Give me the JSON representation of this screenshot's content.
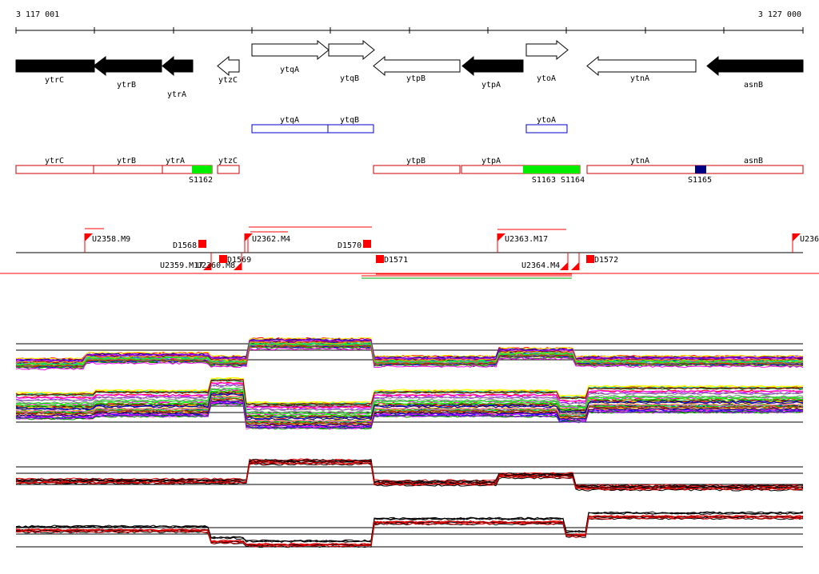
{
  "coords": {
    "start": "3 117 001",
    "end": "3 127 000"
  },
  "genes": [
    {
      "name": "ytrC",
      "strand": "-",
      "filled": true
    },
    {
      "name": "ytrB",
      "strand": "-",
      "filled": true
    },
    {
      "name": "ytrA",
      "strand": "-",
      "filled": true
    },
    {
      "name": "ytzC",
      "strand": "-",
      "filled": false
    },
    {
      "name": "ytqA",
      "strand": "+",
      "filled": false
    },
    {
      "name": "ytqB",
      "strand": "+",
      "filled": false
    },
    {
      "name": "ytpB",
      "strand": "-",
      "filled": false
    },
    {
      "name": "ytpA",
      "strand": "-",
      "filled": true
    },
    {
      "name": "ytoA",
      "strand": "+",
      "filled": false
    },
    {
      "name": "ytnA",
      "strand": "-",
      "filled": false
    },
    {
      "name": "asnB",
      "strand": "-",
      "filled": true
    }
  ],
  "plus_track": [
    "ytqA",
    "ytqB",
    "ytoA"
  ],
  "minus_track": [
    "ytrC",
    "ytrB",
    "ytrA",
    "ytzC",
    "ytpB",
    "ytpA",
    "ytnA",
    "asnB"
  ],
  "sites": [
    {
      "name": "S1162",
      "color": "#00ee00"
    },
    {
      "name": "S1163 S1164",
      "color": "#00ee00"
    },
    {
      "name": "S1165",
      "color": "#000080"
    }
  ],
  "features_up": [
    {
      "name": "U2358.M9"
    },
    {
      "name": "U2362.M4"
    },
    {
      "name": "U2363.M17"
    },
    {
      "name": "U236"
    }
  ],
  "features_down": [
    {
      "name": "U2359.M17"
    },
    {
      "name": "U2360.M8"
    },
    {
      "name": "U2364.M4"
    }
  ],
  "markers": [
    {
      "name": "D1568"
    },
    {
      "name": "D1569"
    },
    {
      "name": "D1570"
    },
    {
      "name": "D1571"
    },
    {
      "name": "D1572"
    }
  ],
  "colors": {
    "gene_fill": "#000000",
    "plus_box": "#0000cc",
    "minus_box": "#cc0000",
    "feature": "#ff0000",
    "profile_red": "#dd0000",
    "profile_black": "#000000"
  },
  "profile_palette": [
    "#ff0000",
    "#00aa00",
    "#0000ff",
    "#ff00ff",
    "#00cccc",
    "#ffaa00",
    "#8800ff",
    "#888888",
    "#00ff00",
    "#aa5500",
    "#ff66cc",
    "#006600",
    "#ffff00",
    "#000088",
    "#990000"
  ]
}
